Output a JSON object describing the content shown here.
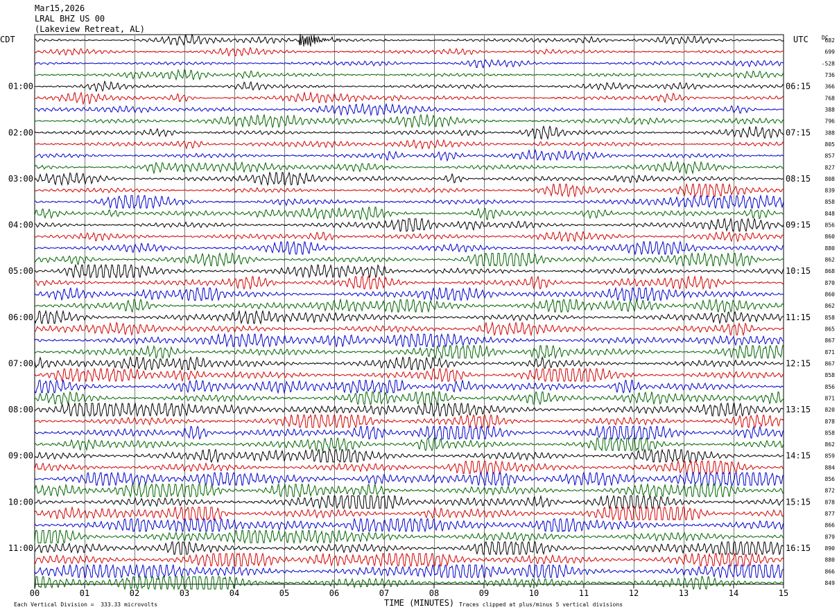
{
  "header": {
    "date": "Mar15,2026",
    "station": "LRAL BHZ US 00",
    "location": "(Lakeview Retreat, AL)"
  },
  "left_zone_label": "CDT",
  "right_zone_label": "UTC",
  "dc_label": "DC",
  "footer": {
    "scale_note": "Each Vertical Division =  333.33 microvolts",
    "xlabel": "TIME (MINUTES)",
    "clip_note": "Traces clipped at plus/minus 5 vertical divisions"
  },
  "trace_colors": [
    "#000000",
    "#d40000",
    "#0000cc",
    "#006400"
  ],
  "chart_data": {
    "type": "line",
    "title": "LRAL BHZ US 00",
    "xlabel": "TIME (MINUTES)",
    "xlim": [
      0,
      15
    ],
    "x_ticks": [
      "00",
      "01",
      "02",
      "03",
      "04",
      "05",
      "06",
      "07",
      "08",
      "09",
      "10",
      "11",
      "12",
      "13",
      "14",
      "15"
    ],
    "rows": 48,
    "row_interval_minutes": 15,
    "left_hour_labels": [
      "01:00",
      "02:00",
      "03:00",
      "04:00",
      "05:00",
      "06:00",
      "07:00",
      "08:00",
      "09:00",
      "10:00",
      "11:00"
    ],
    "right_hour_labels": [
      "06:15",
      "07:15",
      "08:15",
      "09:15",
      "10:15",
      "11:15",
      "12:15",
      "13:15",
      "14:15",
      "15:15",
      "16:15"
    ],
    "dc_offsets": [
      "682",
      "699",
      "-528",
      "736",
      "366",
      "768",
      "388",
      "796",
      "388",
      "805",
      "857",
      "827",
      "808",
      "839",
      "858",
      "848",
      "856",
      "860",
      "880",
      "862",
      "868",
      "870",
      "860",
      "862",
      "858",
      "865",
      "867",
      "871",
      "867",
      "858",
      "856",
      "871",
      "820",
      "878",
      "858",
      "862",
      "859",
      "884",
      "856",
      "872",
      "878",
      "877",
      "866",
      "879",
      "890",
      "880",
      "866",
      "849"
    ],
    "event": {
      "row": 0,
      "start_minute": 5.3,
      "end_minute": 6.2
    }
  }
}
